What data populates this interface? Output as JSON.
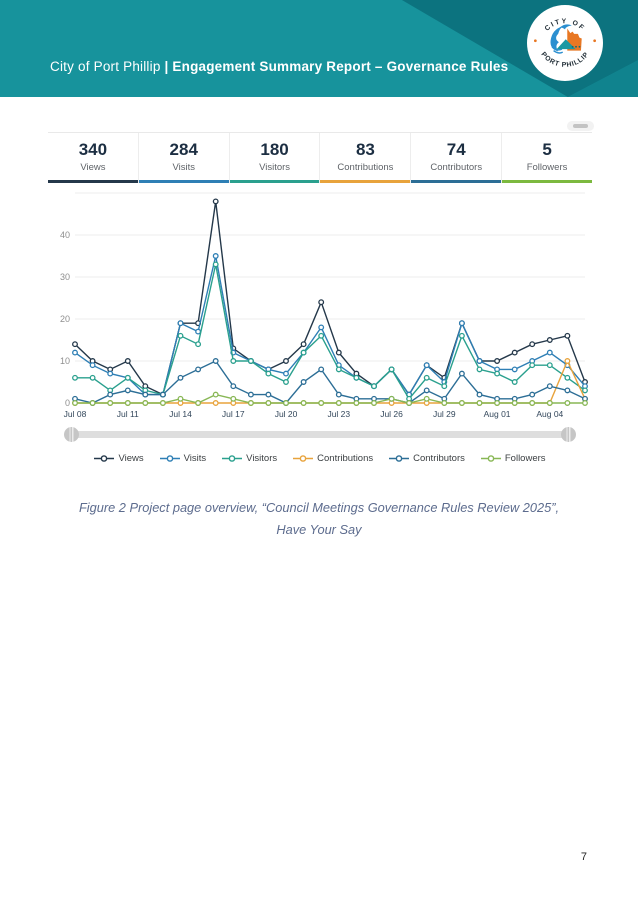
{
  "header": {
    "title_regular": "City of Port Phillip ",
    "title_bold": "| Engagement Summary Report – Governance Rules",
    "bg_color": "#17939c",
    "bg_dark_color": "#0c737f",
    "bg_corner_color": "#10838e",
    "logo": {
      "top_text": "CITY OF",
      "bottom_text": "PORT PHILLIP"
    }
  },
  "stats": [
    {
      "value": "340",
      "label": "Views",
      "color": "#24384a"
    },
    {
      "value": "284",
      "label": "Visits",
      "color": "#2e7fb5"
    },
    {
      "value": "180",
      "label": "Visitors",
      "color": "#2aa08e"
    },
    {
      "value": "83",
      "label": "Contributions",
      "color": "#e8a33c"
    },
    {
      "value": "74",
      "label": "Contributors",
      "color": "#2c6e96"
    },
    {
      "value": "5",
      "label": "Followers",
      "color": "#7cb93f"
    }
  ],
  "chart_data": {
    "type": "line",
    "x": [
      "Jul 08",
      "Jul 09",
      "Jul 10",
      "Jul 11",
      "Jul 12",
      "Jul 13",
      "Jul 14",
      "Jul 15",
      "Jul 16",
      "Jul 17",
      "Jul 18",
      "Jul 19",
      "Jul 20",
      "Jul 21",
      "Jul 22",
      "Jul 23",
      "Jul 24",
      "Jul 25",
      "Jul 26",
      "Jul 27",
      "Jul 28",
      "Jul 29",
      "Jul 30",
      "Jul 31",
      "Aug 01",
      "Aug 02",
      "Aug 03",
      "Aug 04",
      "Aug 05",
      "Aug 06"
    ],
    "x_tick_labels": [
      "Jul 08",
      "Jul 11",
      "Jul 14",
      "Jul 17",
      "Jul 20",
      "Jul 23",
      "Jul 26",
      "Jul 29",
      "Aug 01",
      "Aug 04"
    ],
    "yticks": [
      0,
      10,
      20,
      30,
      40
    ],
    "ylim": [
      0,
      50
    ],
    "grid": true,
    "legend_position": "bottom",
    "series": [
      {
        "name": "Views",
        "color": "#24384a",
        "values": [
          14,
          10,
          8,
          10,
          4,
          2,
          19,
          19,
          48,
          13,
          10,
          8,
          10,
          14,
          24,
          12,
          7,
          4,
          8,
          2,
          9,
          6,
          19,
          10,
          10,
          12,
          14,
          15,
          16,
          5
        ]
      },
      {
        "name": "Visits",
        "color": "#2e7fb5",
        "values": [
          12,
          9,
          7,
          6,
          2,
          2,
          19,
          17,
          35,
          12,
          10,
          8,
          7,
          12,
          18,
          9,
          6,
          4,
          8,
          2,
          9,
          5,
          19,
          10,
          8,
          8,
          10,
          12,
          9,
          4
        ]
      },
      {
        "name": "Visitors",
        "color": "#2aa08e",
        "values": [
          6,
          6,
          3,
          6,
          3,
          2,
          16,
          14,
          33,
          10,
          10,
          7,
          5,
          12,
          16,
          8,
          6,
          4,
          8,
          1,
          6,
          4,
          16,
          8,
          7,
          5,
          9,
          9,
          6,
          3
        ]
      },
      {
        "name": "Contributions",
        "color": "#e8a33c",
        "values": [
          0,
          0,
          0,
          0,
          0,
          0,
          0,
          0,
          0,
          0,
          0,
          0,
          0,
          0,
          0,
          0,
          0,
          0,
          0,
          0,
          0,
          0,
          0,
          0,
          0,
          0,
          0,
          0,
          10,
          1
        ]
      },
      {
        "name": "Contributors",
        "color": "#2c6e96",
        "values": [
          1,
          0,
          2,
          3,
          2,
          2,
          6,
          8,
          10,
          4,
          2,
          2,
          0,
          5,
          8,
          2,
          1,
          1,
          1,
          0,
          3,
          1,
          7,
          2,
          1,
          1,
          2,
          4,
          3,
          1
        ]
      },
      {
        "name": "Followers",
        "color": "#88b755",
        "values": [
          0,
          0,
          0,
          0,
          0,
          0,
          1,
          0,
          2,
          1,
          0,
          0,
          0,
          0,
          0,
          0,
          0,
          0,
          1,
          0,
          1,
          0,
          0,
          0,
          0,
          0,
          0,
          0,
          0,
          0
        ]
      }
    ]
  },
  "caption": {
    "line1": "Figure 2 Project page overview, “Council Meetings Governance Rules Review 2025”,",
    "line2": "Have Your Say"
  },
  "page_number": "7"
}
